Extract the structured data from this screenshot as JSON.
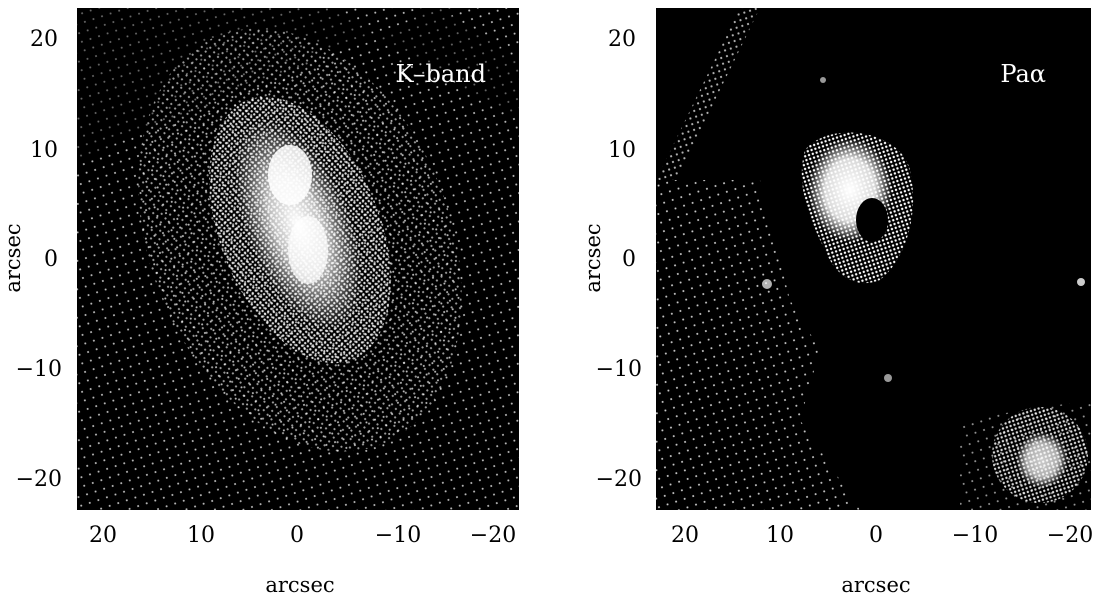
{
  "panels": [
    {
      "band_label": "K–band",
      "x_ticks": [
        "20",
        "10",
        "0",
        "−10",
        "−20"
      ],
      "y_ticks": [
        "20",
        "10",
        "0",
        "−10",
        "−20"
      ],
      "xlabel": "arcsec",
      "ylabel": "arcsec"
    },
    {
      "band_label": "Paα",
      "x_ticks": [
        "20",
        "10",
        "0",
        "−10",
        "−20"
      ],
      "y_ticks": [
        "20",
        "10",
        "0",
        "−10",
        "−20"
      ],
      "xlabel": "arcsec",
      "ylabel": "arcsec"
    }
  ],
  "colors": {
    "sky": "#000000",
    "emission": "#ffffff",
    "background": "#ffffff"
  }
}
